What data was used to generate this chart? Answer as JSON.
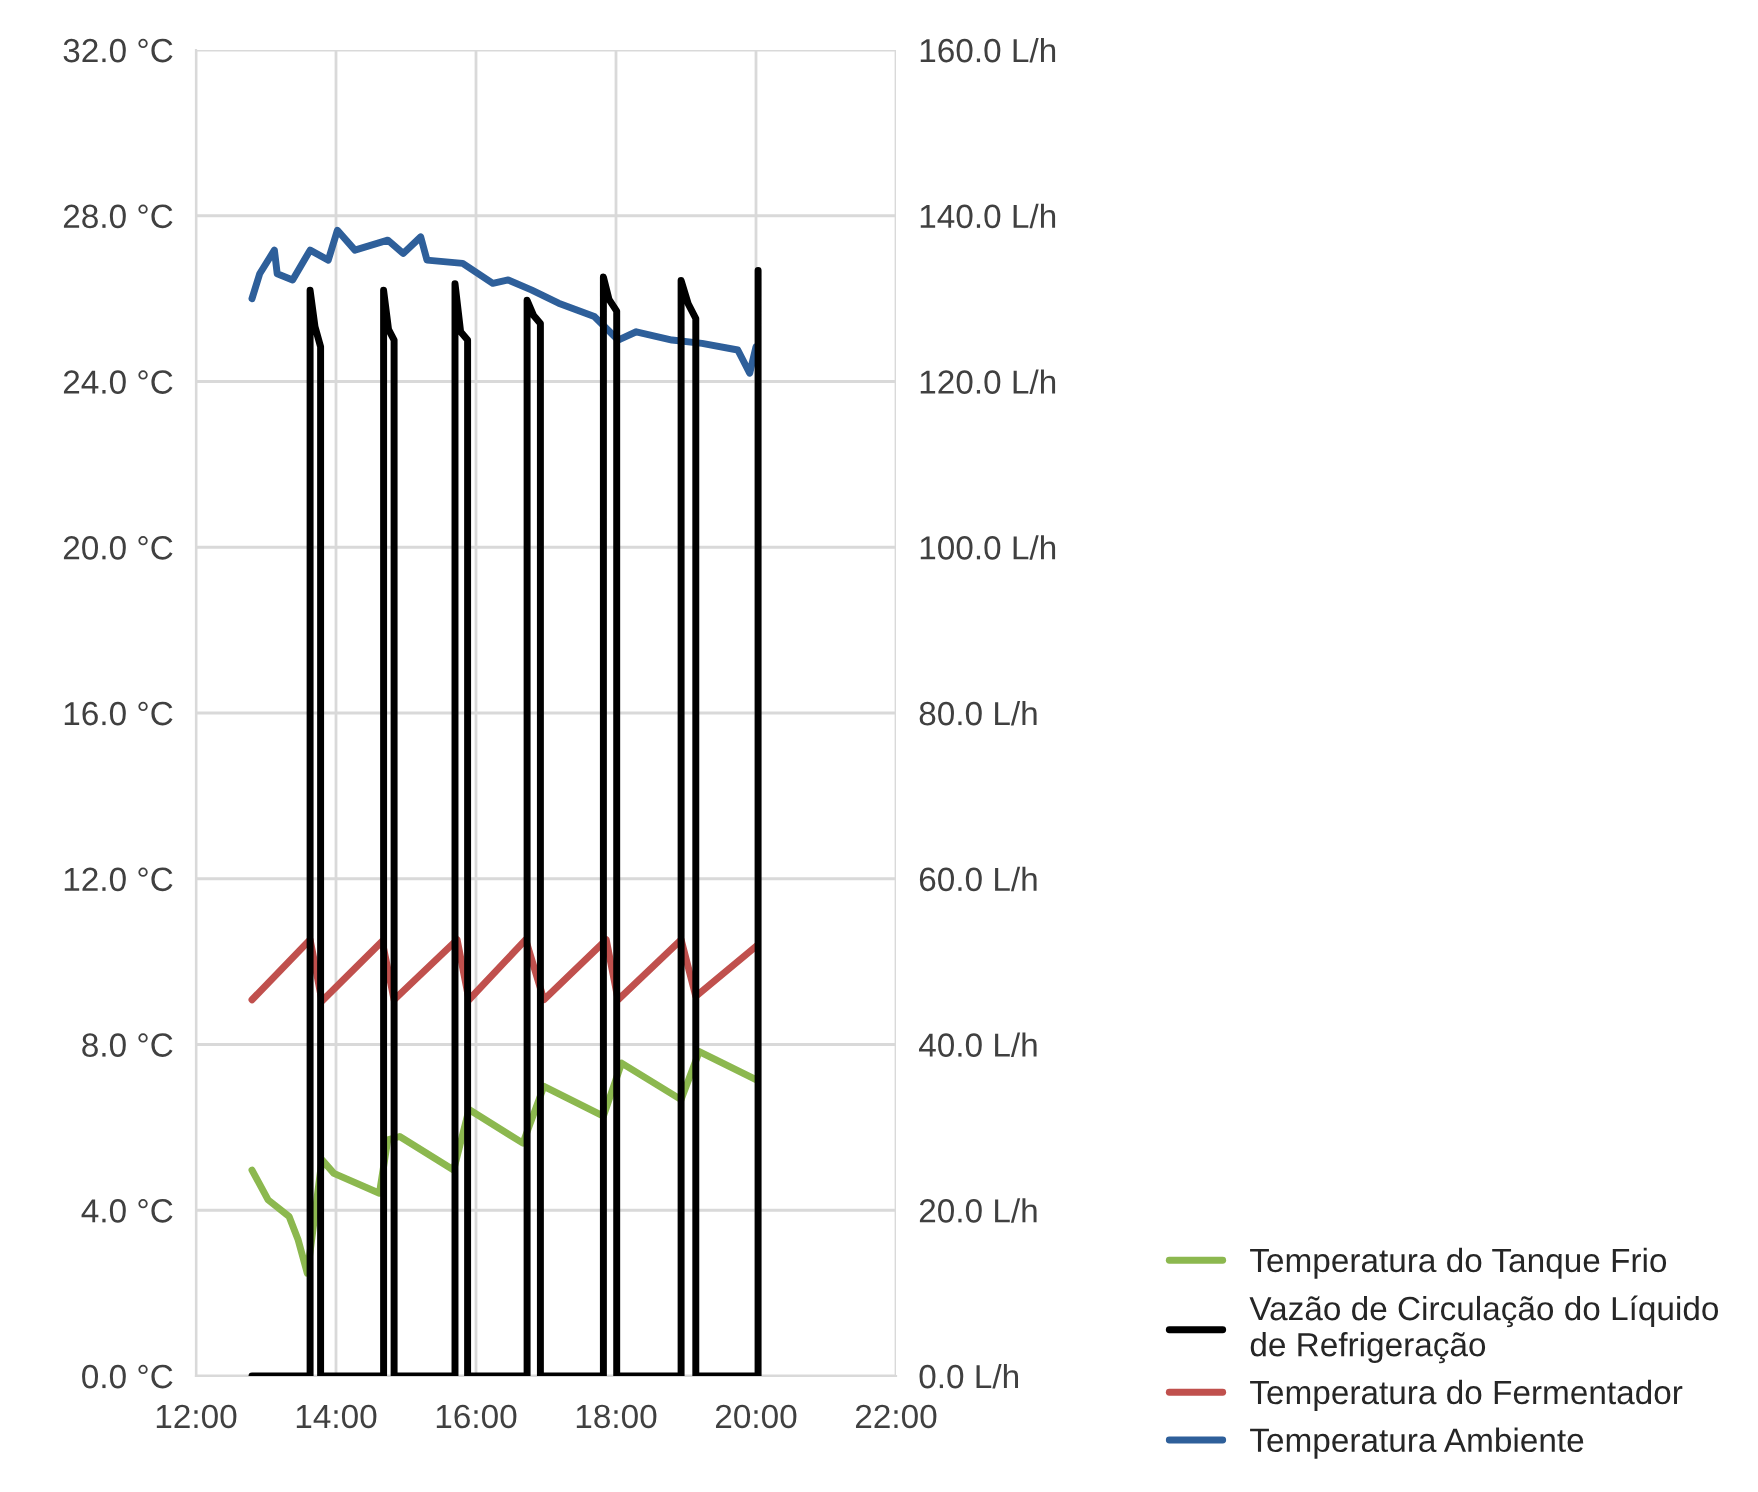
{
  "chart_data": {
    "type": "line",
    "xlim": [
      12,
      22
    ],
    "xticks": [
      {
        "value": 12,
        "label": "12:00"
      },
      {
        "value": 14,
        "label": "14:00"
      },
      {
        "value": 16,
        "label": "16:00"
      },
      {
        "value": 18,
        "label": "18:00"
      },
      {
        "value": 20,
        "label": "20:00"
      },
      {
        "value": 22,
        "label": "22:00"
      }
    ],
    "ylim": [
      0,
      32
    ],
    "yticks": [
      {
        "value": 0,
        "label": "0.0 °C"
      },
      {
        "value": 4,
        "label": "4.0 °C"
      },
      {
        "value": 8,
        "label": "8.0 °C"
      },
      {
        "value": 12,
        "label": "12.0 °C"
      },
      {
        "value": 16,
        "label": "16.0 °C"
      },
      {
        "value": 20,
        "label": "20.0 °C"
      },
      {
        "value": 24,
        "label": "24.0 °C"
      },
      {
        "value": 28,
        "label": "28.0 °C"
      },
      {
        "value": 32,
        "label": "32.0 °C"
      }
    ],
    "y2lim": [
      0,
      160
    ],
    "y2ticks": [
      {
        "value": 0,
        "label": "0.0 L/h"
      },
      {
        "value": 20,
        "label": "20.0 L/h"
      },
      {
        "value": 40,
        "label": "40.0 L/h"
      },
      {
        "value": 60,
        "label": "60.0 L/h"
      },
      {
        "value": 80,
        "label": "80.0 L/h"
      },
      {
        "value": 100,
        "label": "100.0 L/h"
      },
      {
        "value": 120,
        "label": "120.0 L/h"
      },
      {
        "value": 140,
        "label": "140.0 L/h"
      },
      {
        "value": 160,
        "label": "160.0 L/h"
      }
    ],
    "grid": true,
    "legend": "bottom right",
    "marker": "none",
    "line_style": "solid",
    "series": [
      {
        "name": "Temperatura do Tanque Frio",
        "color": "#8cb84f",
        "x": [
          12.8,
          13.03,
          13.33,
          13.46,
          13.59,
          13.8,
          13.97,
          14.62,
          14.74,
          14.91,
          15.68,
          15.9,
          16.67,
          16.97,
          17.82,
          18.08,
          18.93,
          19.19,
          20.0
        ],
        "values": [
          4.97,
          4.25,
          3.85,
          3.28,
          2.48,
          5.22,
          4.89,
          4.41,
          5.7,
          5.78,
          4.97,
          6.43,
          5.62,
          6.99,
          6.27,
          7.55,
          6.67,
          7.83,
          7.15
        ]
      },
      {
        "name": "Vazão de Circulação do Líquido de Refrigeração",
        "color": "#000000",
        "axis": "y2",
        "x": [
          12.8,
          13.63,
          13.63,
          13.7,
          13.78,
          13.78,
          14.68,
          14.68,
          14.75,
          14.83,
          14.83,
          15.7,
          15.7,
          15.78,
          15.88,
          15.88,
          16.73,
          16.73,
          16.82,
          16.92,
          16.92,
          17.82,
          17.82,
          17.9,
          18.01,
          18.01,
          18.93,
          18.93,
          19.03,
          19.14,
          19.14,
          20.03,
          20.03,
          20.03
        ],
        "values": [
          0,
          0,
          131,
          126.6,
          124.2,
          0,
          0,
          131,
          126.3,
          125,
          0,
          0,
          131.8,
          126,
          125,
          0,
          0,
          129.8,
          128,
          127,
          0,
          0,
          132.6,
          129.9,
          128.5,
          0,
          0,
          132.2,
          129.4,
          127.6,
          0,
          0,
          133.4,
          104
        ]
      },
      {
        "name": "Temperatura do Fermentador",
        "color": "#c0504d",
        "x": [
          12.8,
          13.63,
          13.8,
          14.66,
          14.83,
          15.73,
          15.9,
          16.71,
          16.97,
          17.86,
          18.03,
          18.93,
          19.14,
          20.0
        ],
        "values": [
          9.08,
          10.53,
          9.05,
          10.49,
          9.08,
          10.53,
          9.08,
          10.53,
          9.08,
          10.53,
          9.08,
          10.53,
          9.16,
          10.37
        ]
      },
      {
        "name": "Temperatura Ambiente",
        "color": "#2e5f9a",
        "x": [
          12.8,
          12.91,
          13.12,
          13.16,
          13.38,
          13.63,
          13.89,
          14.02,
          14.27,
          14.74,
          14.96,
          15.21,
          15.3,
          15.81,
          16.24,
          16.46,
          16.79,
          17.18,
          17.69,
          18.03,
          18.29,
          18.8,
          19.23,
          19.74,
          19.91,
          20.0
        ],
        "values": [
          26.0,
          26.6,
          27.17,
          26.6,
          26.45,
          27.17,
          26.93,
          27.65,
          27.17,
          27.41,
          27.09,
          27.49,
          26.93,
          26.85,
          26.37,
          26.45,
          26.21,
          25.89,
          25.57,
          25.0,
          25.2,
          25.0,
          24.92,
          24.76,
          24.2,
          24.84
        ]
      }
    ]
  }
}
